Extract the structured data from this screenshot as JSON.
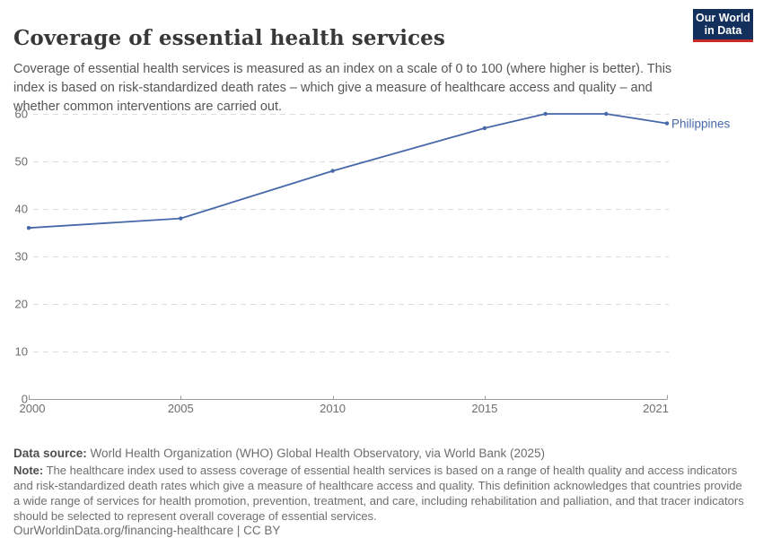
{
  "header": {
    "title": "Coverage of essential health services",
    "subtitle": "Coverage of essential health services is measured as an index on a scale of 0 to 100 (where higher is better). This index is based on risk-standardized death rates – which give a measure of healthcare access and quality – and whether common interventions are carried out.",
    "logo": {
      "line1": "Our World",
      "line2": "in Data",
      "background_color": "#12305b",
      "stripe_color": "#ca2b27"
    }
  },
  "chart_data": {
    "type": "line",
    "title": "Coverage of essential health services",
    "xlabel": "",
    "ylabel": "",
    "xlim": [
      2000,
      2021
    ],
    "ylim": [
      0,
      60
    ],
    "x_ticks": [
      2000,
      2005,
      2010,
      2015,
      2021
    ],
    "y_ticks": [
      0,
      10,
      20,
      30,
      40,
      50,
      60
    ],
    "grid": "horizontal-dashed",
    "legend_position": "end-of-line",
    "series": [
      {
        "name": "Philippines",
        "color": "#4668a9",
        "points": [
          [
            2000,
            36
          ],
          [
            2005,
            38
          ],
          [
            2010,
            48
          ],
          [
            2015,
            57
          ],
          [
            2017,
            60
          ],
          [
            2019,
            60
          ],
          [
            2021,
            58
          ]
        ]
      }
    ],
    "style": {
      "grid_color": "#dcdcdc",
      "axis_color": "#9a9a9a",
      "tick_label_color": "#6d6d6d"
    }
  },
  "footer": {
    "data_source_label": "Data source:",
    "data_source_text": " World Health Organization (WHO) Global Health Observatory, via World Bank (2025)",
    "note_label": "Note:",
    "note_text": " The healthcare index used to assess coverage of essential health services is based on a range of health quality and access indicators and risk-standardized death rates which give a measure of healthcare access and quality. This definition acknowledges that countries provide a wide range of services for health promotion, prevention, treatment, and care, including rehabilitation and palliation, and that tracer indicators should be selected to represent overall coverage of essential services.",
    "url_line": "OurWorldinData.org/financing-healthcare | CC BY"
  }
}
